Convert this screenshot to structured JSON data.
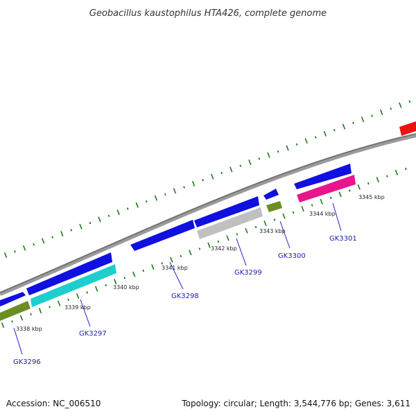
{
  "title": "Geobacillus kaustophilus HTA426, complete genome",
  "footer": {
    "accession": "Accession: NC_006510",
    "topology": "Topology: circular; Length: 3,544,776 bp; Genes: 3,611"
  },
  "colors": {
    "backbone": "#808080",
    "tick": "#1e7a1e",
    "label_line": "#2020c0",
    "label_text": "#1a1ab8"
  },
  "kbp_labels": [
    "3338 kbp",
    "3339 kbp",
    "3340 kbp",
    "3341 kbp",
    "3342 kbp",
    "3343 kbp",
    "3344 kbp",
    "3345 kbp"
  ],
  "gene_labels": [
    "GK3296",
    "GK3297",
    "GK3298",
    "GK3299",
    "GK3300",
    "GK3301"
  ],
  "features": [
    {
      "name": "gene-blue-left",
      "color": "#1010e0"
    },
    {
      "name": "gene-olive-left",
      "color": "#6b8e23"
    },
    {
      "name": "gene-blue-gk3297",
      "color": "#1010e0"
    },
    {
      "name": "gene-cyan-gk3297",
      "color": "#1ecece"
    },
    {
      "name": "gene-blue-gk3298",
      "color": "#1010e0"
    },
    {
      "name": "gene-blue-gk3299",
      "color": "#1010e0"
    },
    {
      "name": "gene-grey-gk3299",
      "color": "#c0c0c0"
    },
    {
      "name": "gene-blue-gk3300",
      "color": "#1010e0"
    },
    {
      "name": "gene-olive-gk3300",
      "color": "#6b8e23"
    },
    {
      "name": "gene-blue-gk3301",
      "color": "#1010e0"
    },
    {
      "name": "gene-pink-gk3301",
      "color": "#e8168c"
    },
    {
      "name": "gene-red-right",
      "color": "#ee1111"
    }
  ]
}
